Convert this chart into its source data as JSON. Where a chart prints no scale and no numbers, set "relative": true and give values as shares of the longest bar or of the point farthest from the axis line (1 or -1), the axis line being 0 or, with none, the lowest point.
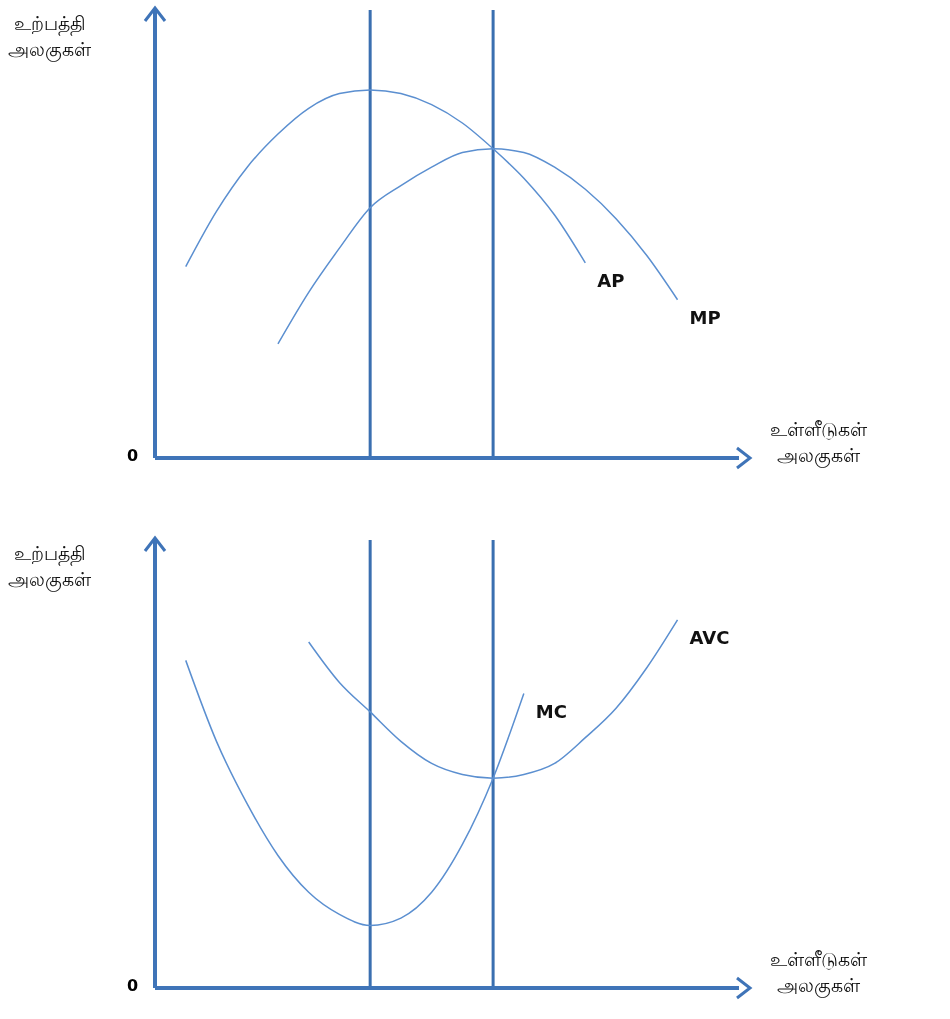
{
  "chart_data": [
    {
      "type": "line",
      "relative": true,
      "ylabel": "உற்பத்தி\nஅலகுகள்",
      "xlabel": "உள்ளீடுகள்\nஅலகுகள்",
      "tick_labels": false,
      "marker": "none",
      "annotations": [
        "0"
      ],
      "categories": [
        null,
        null,
        null,
        null,
        null,
        null,
        null,
        null,
        null,
        null,
        null,
        null,
        null,
        null,
        null,
        null,
        null,
        null,
        null,
        null
      ],
      "series": [
        {
          "name": "AP",
          "color": "#5b8fd0",
          "values": [
            null,
            0.52,
            0.67,
            0.79,
            0.88,
            0.95,
            0.99,
            1.0,
            0.99,
            0.96,
            0.91,
            0.84,
            0.76,
            0.66,
            0.53,
            null,
            null,
            null,
            null,
            null
          ]
        },
        {
          "name": "MP",
          "color": "#5b8fd0",
          "values": [
            null,
            null,
            null,
            null,
            0.31,
            0.45,
            0.57,
            0.68,
            0.74,
            0.79,
            0.83,
            0.84,
            0.83,
            0.79,
            0.73,
            0.65,
            0.55,
            0.43,
            null,
            null
          ]
        }
      ]
    },
    {
      "type": "line",
      "relative": true,
      "ylabel": "உற்பத்தி\nஅலகுகள்",
      "xlabel": "உள்ளீடுகள்\nஅலகுகள்",
      "tick_labels": false,
      "marker": "none",
      "annotations": [
        "0"
      ],
      "categories": [
        null,
        null,
        null,
        null,
        null,
        null,
        null,
        null,
        null,
        null,
        null,
        null,
        null,
        null,
        null,
        null,
        null,
        null,
        null,
        null
      ],
      "series": [
        {
          "name": "MC",
          "color": "#5b8fd0",
          "values": [
            null,
            0.89,
            0.67,
            0.5,
            0.36,
            0.26,
            0.2,
            0.17,
            0.19,
            0.26,
            0.39,
            0.57,
            0.8,
            null,
            null,
            null,
            null,
            null,
            null,
            null
          ]
        },
        {
          "name": "AVC",
          "color": "#5b8fd0",
          "values": [
            null,
            null,
            null,
            null,
            null,
            0.94,
            0.83,
            0.75,
            0.67,
            0.61,
            0.58,
            0.57,
            0.58,
            0.61,
            0.68,
            0.76,
            0.87,
            1.0,
            null,
            null
          ]
        }
      ]
    }
  ]
}
